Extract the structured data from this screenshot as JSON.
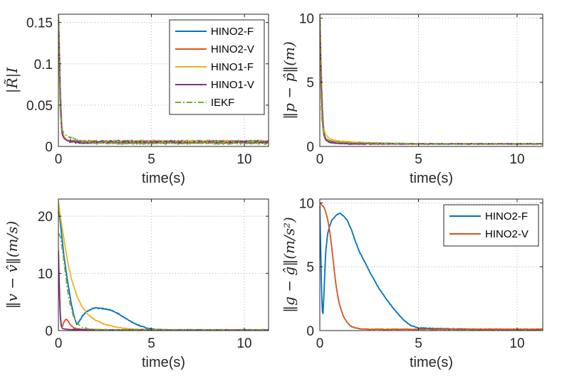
{
  "chart_data": [
    {
      "type": "line",
      "xlabel": "time(s)",
      "ylabel": "|R̃|I",
      "xlim": [
        0,
        11.3
      ],
      "ylim": [
        0,
        0.16
      ],
      "xticks": [
        0,
        5,
        10
      ],
      "yticks": [
        0,
        0.05,
        0.1,
        0.15
      ],
      "ytick_labels": [
        "0",
        "0.05",
        "0.1",
        "0.15"
      ],
      "grid": true,
      "legend_position": "top-right",
      "series": [
        {
          "name": "HINO2-F",
          "color": "#0072BD",
          "x": [
            0,
            0.05,
            0.1,
            0.15,
            0.2,
            0.3,
            0.4,
            0.6,
            1,
            2,
            4,
            6,
            8,
            10,
            11.3
          ],
          "y": [
            0.16,
            0.12,
            0.07,
            0.04,
            0.02,
            0.012,
            0.009,
            0.007,
            0.006,
            0.006,
            0.006,
            0.006,
            0.006,
            0.006,
            0.006
          ]
        },
        {
          "name": "HINO2-V",
          "color": "#D95319",
          "x": [
            0,
            0.05,
            0.1,
            0.15,
            0.2,
            0.3,
            0.4,
            0.6,
            1,
            2,
            4,
            6,
            8,
            10,
            11.3
          ],
          "y": [
            0.16,
            0.11,
            0.06,
            0.03,
            0.015,
            0.01,
            0.008,
            0.006,
            0.005,
            0.005,
            0.005,
            0.005,
            0.005,
            0.005,
            0.005
          ]
        },
        {
          "name": "HINO1-F",
          "color": "#EDB120",
          "x": [
            0,
            0.05,
            0.1,
            0.15,
            0.2,
            0.3,
            0.4,
            0.6,
            1,
            2,
            4,
            6,
            8,
            10,
            11.3
          ],
          "y": [
            0.16,
            0.12,
            0.07,
            0.04,
            0.02,
            0.012,
            0.009,
            0.007,
            0.006,
            0.006,
            0.006,
            0.006,
            0.006,
            0.006,
            0.006
          ]
        },
        {
          "name": "HINO1-V",
          "color": "#7E2F8E",
          "x": [
            0,
            0.05,
            0.1,
            0.15,
            0.2,
            0.3,
            0.4,
            0.6,
            1,
            2,
            4,
            6,
            8,
            10,
            11.3
          ],
          "y": [
            0.16,
            0.11,
            0.06,
            0.03,
            0.015,
            0.01,
            0.008,
            0.006,
            0.005,
            0.005,
            0.005,
            0.005,
            0.005,
            0.005,
            0.005
          ]
        },
        {
          "name": "IEKF",
          "color": "#77AC30",
          "dash": "dashdot",
          "x": [
            0,
            0.05,
            0.1,
            0.2,
            0.3,
            0.5,
            0.8,
            1.2,
            2,
            4,
            6,
            8,
            10,
            11.3
          ],
          "y": [
            0.16,
            0.09,
            0.04,
            0.02,
            0.016,
            0.012,
            0.009,
            0.006,
            0.004,
            0.004,
            0.004,
            0.004,
            0.004,
            0.004
          ]
        }
      ]
    },
    {
      "type": "line",
      "xlabel": "time(s)",
      "ylabel": "‖p − p̂‖(m)",
      "xlim": [
        0,
        11.3
      ],
      "ylim": [
        0,
        10.3
      ],
      "xticks": [
        0,
        5,
        10
      ],
      "yticks": [
        0,
        5,
        10
      ],
      "ytick_labels": [
        "0",
        "5",
        "10"
      ],
      "grid": true,
      "series": [
        {
          "name": "HINO2-F",
          "color": "#0072BD",
          "x": [
            0,
            0.05,
            0.1,
            0.15,
            0.2,
            0.3,
            0.5,
            0.8,
            1.5,
            3,
            5,
            8,
            11.3
          ],
          "y": [
            10.3,
            7,
            4,
            2,
            1,
            0.6,
            0.45,
            0.35,
            0.3,
            0.25,
            0.2,
            0.2,
            0.2
          ]
        },
        {
          "name": "HINO2-V",
          "color": "#D95319",
          "x": [
            0,
            0.05,
            0.1,
            0.15,
            0.2,
            0.3,
            0.5,
            0.8,
            1.5,
            3,
            5,
            8,
            11.3
          ],
          "y": [
            10.3,
            6.5,
            3.5,
            1.8,
            0.9,
            0.5,
            0.35,
            0.3,
            0.25,
            0.2,
            0.2,
            0.2,
            0.2
          ]
        },
        {
          "name": "HINO1-F",
          "color": "#EDB120",
          "x": [
            0,
            0.05,
            0.1,
            0.15,
            0.2,
            0.3,
            0.5,
            0.8,
            1.5,
            3,
            5,
            8,
            11.3
          ],
          "y": [
            10.3,
            7.5,
            4.5,
            2.5,
            1.4,
            0.9,
            0.6,
            0.45,
            0.35,
            0.25,
            0.2,
            0.2,
            0.2
          ]
        },
        {
          "name": "HINO1-V",
          "color": "#7E2F8E",
          "x": [
            0,
            0.05,
            0.1,
            0.15,
            0.2,
            0.3,
            0.5,
            0.8,
            1.5,
            3,
            5,
            8,
            11.3
          ],
          "y": [
            10.3,
            6.5,
            3.5,
            1.8,
            0.9,
            0.5,
            0.3,
            0.25,
            0.2,
            0.2,
            0.2,
            0.2,
            0.2
          ]
        },
        {
          "name": "IEKF",
          "color": "#77AC30",
          "dash": "dashdot",
          "x": [
            0,
            0.05,
            0.1,
            0.2,
            0.3,
            0.5,
            0.8,
            1.5,
            3,
            5,
            8,
            11.3
          ],
          "y": [
            10.3,
            5,
            2.2,
            0.9,
            0.6,
            0.45,
            0.35,
            0.3,
            0.25,
            0.2,
            0.2,
            0.2
          ]
        }
      ]
    },
    {
      "type": "line",
      "xlabel": "time(s)",
      "ylabel": "‖v − v̂‖(m/s)",
      "xlim": [
        0,
        11.3
      ],
      "ylim": [
        0,
        23
      ],
      "xticks": [
        0,
        5,
        10
      ],
      "yticks": [
        0,
        10,
        20
      ],
      "ytick_labels": [
        "0",
        "10",
        "20"
      ],
      "grid": true,
      "series": [
        {
          "name": "HINO2-F",
          "color": "#0072BD",
          "x": [
            0,
            0.1,
            0.2,
            0.3,
            0.5,
            0.7,
            0.9,
            1.0,
            1.1,
            1.3,
            1.5,
            1.8,
            2.0,
            2.2,
            2.5,
            2.8,
            3.2,
            3.6,
            4.0,
            4.4,
            4.8,
            5.2,
            6,
            8,
            11.3
          ],
          "y": [
            22,
            19,
            16,
            13,
            8.5,
            4.5,
            1.8,
            1.0,
            1.5,
            2.6,
            3.3,
            3.8,
            4.0,
            3.9,
            3.8,
            3.6,
            3.0,
            2.2,
            1.4,
            0.8,
            0.4,
            0.2,
            0.1,
            0.1,
            0.1
          ]
        },
        {
          "name": "HINO2-V",
          "color": "#D95319",
          "x": [
            0,
            0.05,
            0.1,
            0.15,
            0.2,
            0.3,
            0.4,
            0.5,
            0.6,
            0.8,
            1.0,
            1.5,
            2,
            4,
            8,
            11.3
          ],
          "y": [
            14,
            8,
            3,
            1,
            0.6,
            1.5,
            2.0,
            1.8,
            1.2,
            0.5,
            0.3,
            0.2,
            0.1,
            0.1,
            0.1,
            0.1
          ]
        },
        {
          "name": "HINO1-F",
          "color": "#EDB120",
          "x": [
            0,
            0.1,
            0.2,
            0.3,
            0.5,
            0.7,
            1.0,
            1.3,
            1.6,
            2.0,
            2.5,
            3.0,
            3.5,
            4.0,
            5,
            6,
            8,
            11.3
          ],
          "y": [
            22.5,
            20,
            18,
            16,
            12,
            9,
            6,
            4,
            2.8,
            1.8,
            1.1,
            0.7,
            0.4,
            0.25,
            0.15,
            0.1,
            0.1,
            0.1
          ]
        },
        {
          "name": "HINO1-V",
          "color": "#7E2F8E",
          "x": [
            0,
            0.05,
            0.1,
            0.15,
            0.2,
            0.3,
            0.5,
            1,
            2,
            5,
            11.3
          ],
          "y": [
            14,
            7,
            2.5,
            0.8,
            0.4,
            0.3,
            0.2,
            0.15,
            0.1,
            0.1,
            0.1
          ]
        },
        {
          "name": "IEKF",
          "color": "#77AC30",
          "dash": "dashdot",
          "x": [
            0,
            0.1,
            0.2,
            0.3,
            0.4,
            0.5,
            0.6,
            0.8,
            1.0,
            1.3,
            1.6,
            2.0,
            3,
            5,
            11.3
          ],
          "y": [
            17,
            16.5,
            14.5,
            12,
            9.5,
            7,
            5,
            2.5,
            1.3,
            0.6,
            0.3,
            0.2,
            0.1,
            0.1,
            0.1
          ]
        }
      ]
    },
    {
      "type": "line",
      "xlabel": "time(s)",
      "ylabel": "‖g − ĝ‖(m/s²)",
      "xlim": [
        0,
        11.3
      ],
      "ylim": [
        0,
        10.3
      ],
      "xticks": [
        0,
        5,
        10
      ],
      "yticks": [
        0,
        5,
        10
      ],
      "ytick_labels": [
        "0",
        "5",
        "10"
      ],
      "grid": true,
      "legend_position": "top-right",
      "series": [
        {
          "name": "HINO2-F",
          "color": "#0072BD",
          "x": [
            0,
            0.05,
            0.1,
            0.15,
            0.2,
            0.25,
            0.3,
            0.4,
            0.5,
            0.6,
            0.8,
            1.0,
            1.2,
            1.4,
            1.6,
            1.8,
            2.0,
            2.3,
            2.6,
            3.0,
            3.4,
            3.8,
            4.2,
            4.6,
            5.0,
            6,
            8,
            11.3
          ],
          "y": [
            9.8,
            6,
            2.5,
            1.0,
            2.5,
            4.5,
            6.2,
            7.6,
            8.2,
            8.6,
            9.0,
            9.2,
            9.0,
            8.6,
            7.9,
            7.0,
            6.2,
            5.3,
            4.4,
            3.3,
            2.4,
            1.6,
            0.9,
            0.4,
            0.2,
            0.15,
            0.1,
            0.1
          ]
        },
        {
          "name": "HINO2-V",
          "color": "#D95319",
          "x": [
            0,
            0.05,
            0.1,
            0.2,
            0.3,
            0.4,
            0.5,
            0.6,
            0.7,
            0.8,
            0.9,
            1.0,
            1.2,
            1.4,
            1.6,
            1.8,
            2.0,
            2.5,
            3,
            4,
            6,
            11.3
          ],
          "y": [
            9.9,
            10.0,
            9.8,
            9.7,
            9.3,
            8.7,
            7.8,
            6.6,
            5.2,
            3.8,
            2.8,
            2.0,
            1.1,
            0.6,
            0.3,
            0.2,
            0.15,
            0.1,
            0.1,
            0.1,
            0.1,
            0.1
          ]
        }
      ]
    }
  ]
}
